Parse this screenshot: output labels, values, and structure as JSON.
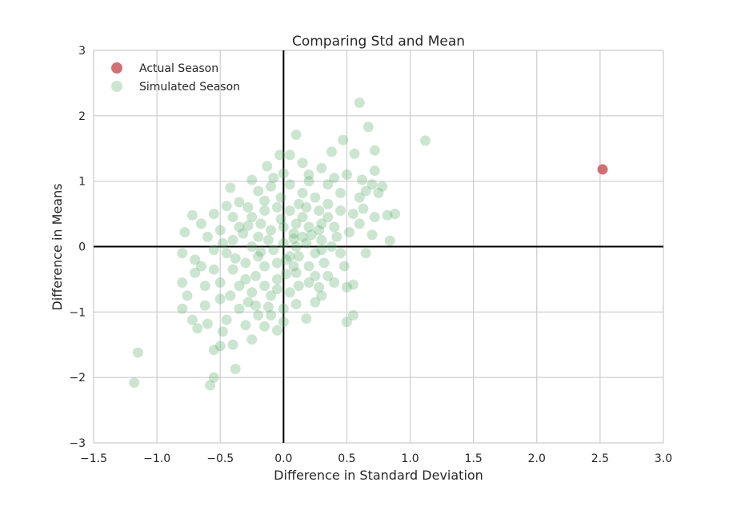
{
  "chart_data": {
    "type": "scatter",
    "title": "Comparing Std and Mean",
    "xlabel": "Difference in Standard Deviation",
    "ylabel": "Difference in Means",
    "xlim": [
      -1.5,
      3.0
    ],
    "ylim": [
      -3,
      3
    ],
    "x_ticks": [
      -1.5,
      -1.0,
      -0.5,
      0.0,
      0.5,
      1.0,
      1.5,
      2.0,
      2.5,
      3.0
    ],
    "x_tick_labels": [
      "−1.5",
      "−1.0",
      "−0.5",
      "0.0",
      "0.5",
      "1.0",
      "1.5",
      "2.0",
      "2.5",
      "3.0"
    ],
    "y_ticks": [
      -3,
      -2,
      -1,
      0,
      1,
      2,
      3
    ],
    "y_tick_labels": [
      "−3",
      "−2",
      "−1",
      "0",
      "1",
      "2",
      "3"
    ],
    "grid": true,
    "legend_position": "top-left",
    "series": [
      {
        "name": "Actual Season",
        "color": "#c44e52",
        "points": [
          [
            2.52,
            1.18
          ]
        ]
      },
      {
        "name": "Simulated Season",
        "color": "#55a868",
        "points": [
          [
            -1.18,
            -2.08
          ],
          [
            -1.15,
            -1.62
          ],
          [
            -0.58,
            -2.12
          ],
          [
            -0.55,
            -2.0
          ],
          [
            -0.38,
            -1.87
          ],
          [
            0.6,
            2.2
          ],
          [
            0.67,
            1.83
          ],
          [
            1.12,
            1.62
          ],
          [
            0.1,
            1.71
          ],
          [
            0.47,
            1.63
          ],
          [
            0.72,
            1.47
          ],
          [
            0.56,
            1.42
          ],
          [
            0.38,
            1.45
          ],
          [
            -0.03,
            1.4
          ],
          [
            0.05,
            1.4
          ],
          [
            -0.13,
            1.23
          ],
          [
            0.15,
            1.28
          ],
          [
            0.72,
            1.16
          ],
          [
            0.88,
            0.5
          ],
          [
            0.82,
            0.48
          ],
          [
            0.84,
            0.09
          ],
          [
            0.0,
            1.12
          ],
          [
            0.2,
            1.1
          ],
          [
            0.3,
            1.2
          ],
          [
            0.4,
            1.05
          ],
          [
            0.5,
            1.1
          ],
          [
            0.62,
            1.02
          ],
          [
            0.7,
            0.95
          ],
          [
            0.78,
            0.92
          ],
          [
            0.75,
            0.82
          ],
          [
            -0.72,
            0.48
          ],
          [
            -0.78,
            0.22
          ],
          [
            -0.8,
            -0.1
          ],
          [
            -0.8,
            -0.55
          ],
          [
            -0.7,
            -0.4
          ],
          [
            -0.76,
            -0.75
          ],
          [
            -0.8,
            -0.95
          ],
          [
            -0.72,
            -1.12
          ],
          [
            -0.68,
            -1.25
          ],
          [
            -0.6,
            -1.18
          ],
          [
            -0.55,
            -1.58
          ],
          [
            -0.5,
            -1.52
          ],
          [
            -0.4,
            -1.5
          ],
          [
            -0.45,
            -1.12
          ],
          [
            -0.25,
            -1.42
          ],
          [
            -0.15,
            -1.22
          ],
          [
            -0.05,
            -1.28
          ],
          [
            0.18,
            -1.1
          ],
          [
            0.5,
            -1.15
          ],
          [
            0.55,
            -1.05
          ],
          [
            0.55,
            -0.58
          ],
          [
            0.5,
            -0.62
          ],
          [
            0.65,
            -0.1
          ],
          [
            0.7,
            0.18
          ],
          [
            0.72,
            0.45
          ],
          [
            0.63,
            0.58
          ],
          [
            0.6,
            0.75
          ],
          [
            0.45,
            0.82
          ],
          [
            0.55,
            0.5
          ],
          [
            0.48,
            -0.3
          ],
          [
            0.35,
            -0.45
          ],
          [
            0.2,
            -0.55
          ],
          [
            0.3,
            -0.75
          ],
          [
            0.1,
            -0.88
          ],
          [
            0.0,
            -0.95
          ],
          [
            -0.1,
            -1.05
          ],
          [
            -0.22,
            -0.9
          ],
          [
            -0.35,
            -0.95
          ],
          [
            -0.5,
            -0.8
          ],
          [
            -0.62,
            -0.6
          ],
          [
            -0.65,
            -0.3
          ],
          [
            -0.6,
            0.15
          ],
          [
            -0.55,
            0.5
          ],
          [
            -0.45,
            0.62
          ],
          [
            -0.35,
            0.68
          ],
          [
            -0.2,
            0.85
          ],
          [
            -0.1,
            0.92
          ],
          [
            0.05,
            0.95
          ],
          [
            0.15,
            0.82
          ],
          [
            0.25,
            0.75
          ],
          [
            0.35,
            0.65
          ],
          [
            0.4,
            0.3
          ],
          [
            0.3,
            0.1
          ],
          [
            0.25,
            -0.1
          ],
          [
            0.2,
            -0.3
          ],
          [
            0.1,
            -0.4
          ],
          [
            -0.05,
            -0.5
          ],
          [
            -0.15,
            -0.6
          ],
          [
            -0.25,
            -0.7
          ],
          [
            -0.3,
            -0.5
          ],
          [
            -0.4,
            -0.35
          ],
          [
            -0.45,
            -0.1
          ],
          [
            -0.4,
            0.1
          ],
          [
            -0.35,
            0.3
          ],
          [
            -0.25,
            0.45
          ],
          [
            -0.15,
            0.55
          ],
          [
            -0.05,
            0.6
          ],
          [
            0.05,
            0.55
          ],
          [
            0.15,
            0.45
          ],
          [
            0.2,
            0.3
          ],
          [
            0.15,
            0.15
          ],
          [
            0.1,
            0.0
          ],
          [
            0.05,
            -0.15
          ],
          [
            -0.05,
            -0.25
          ],
          [
            -0.15,
            -0.3
          ],
          [
            -0.2,
            -0.15
          ],
          [
            -0.25,
            0.0
          ],
          [
            -0.2,
            0.15
          ],
          [
            -0.1,
            0.25
          ],
          [
            0.0,
            0.3
          ],
          [
            0.08,
            0.2
          ],
          [
            0.0,
            0.05
          ],
          [
            -0.08,
            -0.05
          ],
          [
            -0.12,
            0.1
          ],
          [
            -0.3,
            -0.25
          ],
          [
            -0.35,
            -0.6
          ],
          [
            -0.28,
            -0.85
          ],
          [
            -0.1,
            -0.75
          ],
          [
            0.05,
            -0.7
          ],
          [
            0.12,
            -0.6
          ],
          [
            0.25,
            -0.45
          ],
          [
            0.32,
            -0.25
          ],
          [
            0.38,
            0.0
          ],
          [
            0.42,
            0.15
          ],
          [
            0.35,
            0.45
          ],
          [
            0.28,
            0.55
          ],
          [
            0.12,
            0.65
          ],
          [
            -0.02,
            0.75
          ],
          [
            -0.15,
            0.7
          ],
          [
            -0.28,
            0.6
          ],
          [
            -0.4,
            0.45
          ],
          [
            -0.5,
            0.25
          ],
          [
            -0.55,
            -0.05
          ],
          [
            -0.55,
            -0.35
          ],
          [
            -0.5,
            -0.55
          ],
          [
            -0.42,
            -0.75
          ],
          [
            -0.2,
            -1.05
          ],
          [
            0.08,
            -0.3
          ],
          [
            0.18,
            0.05
          ],
          [
            -0.02,
            0.42
          ],
          [
            -0.18,
            0.35
          ],
          [
            -0.32,
            0.2
          ],
          [
            -0.38,
            -0.18
          ],
          [
            -0.22,
            -0.45
          ],
          [
            0.02,
            -0.2
          ],
          [
            0.22,
            0.18
          ],
          [
            0.3,
            0.35
          ],
          [
            0.45,
            0.55
          ],
          [
            0.52,
            0.22
          ],
          [
            0.45,
            -0.1
          ],
          [
            0.4,
            -0.55
          ],
          [
            0.28,
            -0.62
          ],
          [
            -0.62,
            -0.9
          ],
          [
            -0.48,
            -1.3
          ],
          [
            -0.3,
            -1.2
          ],
          [
            0.0,
            -1.15
          ],
          [
            0.25,
            -0.85
          ],
          [
            0.6,
            0.35
          ],
          [
            0.65,
            0.85
          ],
          [
            0.35,
            0.95
          ],
          [
            0.2,
            1.0
          ],
          [
            -0.08,
            1.05
          ],
          [
            -0.25,
            1.02
          ],
          [
            -0.42,
            0.9
          ],
          [
            -0.65,
            0.35
          ],
          [
            -0.7,
            -0.2
          ],
          [
            0.1,
            0.35
          ],
          [
            0.18,
            0.6
          ],
          [
            -0.12,
            -0.92
          ],
          [
            -0.05,
            -0.65
          ],
          [
            0.3,
            -0.05
          ],
          [
            -0.48,
            0.05
          ],
          [
            0.12,
            -0.15
          ],
          [
            0.28,
            0.25
          ],
          [
            -0.28,
            0.32
          ],
          [
            0.02,
            -0.42
          ],
          [
            -0.18,
            -0.08
          ],
          [
            0.08,
            0.12
          ]
        ]
      }
    ]
  }
}
